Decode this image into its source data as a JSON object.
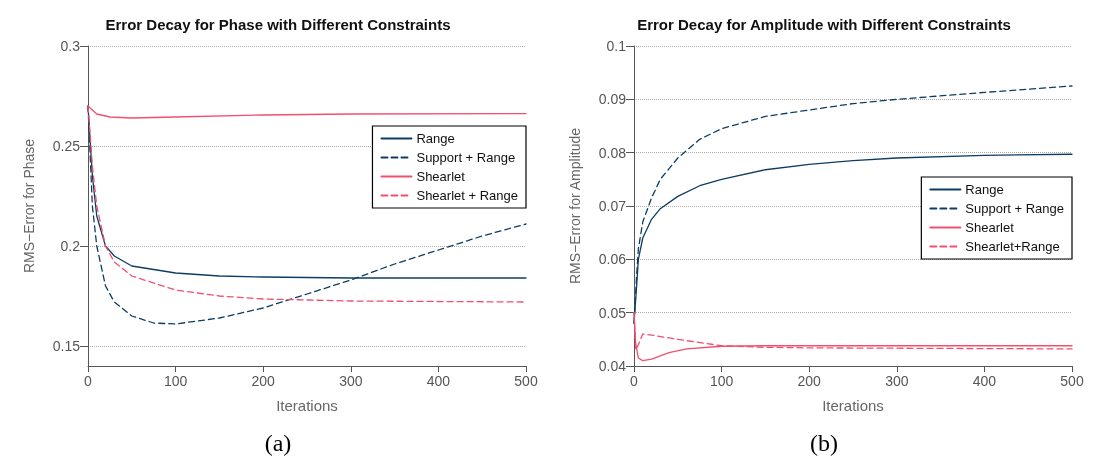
{
  "chart_data": [
    {
      "type": "line",
      "title": "Error Decay for Phase with Different Constraints",
      "xlabel": "Iterations",
      "ylabel": "RMS−Error for Phase",
      "xlim": [
        0,
        500
      ],
      "xticks": [
        0,
        100,
        200,
        300,
        400,
        500
      ],
      "ylim": [
        0.14,
        0.3
      ],
      "yticks": [
        0.15,
        0.2,
        0.25,
        0.3
      ],
      "grid": "y",
      "legend": "top right",
      "marker": "none",
      "annotations": [
        "(a)"
      ],
      "series": [
        {
          "name": "Range",
          "color": "#0d3d63",
          "line_style": "solid",
          "x": [
            0,
            5,
            10,
            20,
            30,
            50,
            100,
            150,
            200,
            300,
            500
          ],
          "values": [
            0.27,
            0.235,
            0.215,
            0.2,
            0.195,
            0.19,
            0.1865,
            0.185,
            0.1845,
            0.184,
            0.184
          ]
        },
        {
          "name": "Support + Range",
          "color": "#0d3d63",
          "line_style": "dashed",
          "x": [
            0,
            5,
            10,
            20,
            30,
            50,
            75,
            100,
            150,
            200,
            250,
            300,
            350,
            400,
            450,
            500
          ],
          "values": [
            0.27,
            0.22,
            0.2,
            0.18,
            0.172,
            0.165,
            0.1615,
            0.161,
            0.164,
            0.169,
            0.176,
            0.183,
            0.191,
            0.198,
            0.205,
            0.211
          ]
        },
        {
          "name": "Shearlet",
          "color": "#f0506e",
          "line_style": "solid",
          "x": [
            0,
            10,
            25,
            50,
            100,
            200,
            300,
            500
          ],
          "values": [
            0.27,
            0.266,
            0.2645,
            0.264,
            0.2645,
            0.2655,
            0.266,
            0.2662
          ]
        },
        {
          "name": "Shearlet + Range",
          "color": "#f0506e",
          "line_style": "dashed",
          "x": [
            0,
            5,
            10,
            20,
            30,
            50,
            100,
            150,
            200,
            300,
            500
          ],
          "values": [
            0.27,
            0.24,
            0.22,
            0.2,
            0.192,
            0.185,
            0.178,
            0.175,
            0.1735,
            0.1725,
            0.172
          ]
        }
      ]
    },
    {
      "type": "line",
      "title": "Error Decay for Amplitude with Different Constraints",
      "xlabel": "Iterations",
      "ylabel": "RMS−Error for Amplitude",
      "xlim": [
        0,
        500
      ],
      "xticks": [
        0,
        100,
        200,
        300,
        400,
        500
      ],
      "ylim": [
        0.04,
        0.1
      ],
      "yticks": [
        0.04,
        0.05,
        0.06,
        0.07,
        0.08,
        0.09,
        0.1
      ],
      "grid": "y",
      "legend": "right",
      "marker": "none",
      "annotations": [
        "(b)"
      ],
      "series": [
        {
          "name": "Range",
          "color": "#0d3d63",
          "line_style": "solid",
          "x": [
            0,
            3,
            5,
            10,
            20,
            30,
            50,
            75,
            100,
            150,
            200,
            250,
            300,
            400,
            500
          ],
          "values": [
            0.048,
            0.055,
            0.06,
            0.064,
            0.0675,
            0.0695,
            0.0718,
            0.0738,
            0.075,
            0.0768,
            0.0778,
            0.0785,
            0.079,
            0.0795,
            0.0797
          ]
        },
        {
          "name": "Support + Range",
          "color": "#0d3d63",
          "line_style": "dashed",
          "x": [
            0,
            3,
            5,
            10,
            20,
            30,
            50,
            75,
            100,
            150,
            200,
            250,
            300,
            400,
            500
          ],
          "values": [
            0.048,
            0.057,
            0.062,
            0.067,
            0.0715,
            0.075,
            0.079,
            0.0825,
            0.0845,
            0.0868,
            0.088,
            0.0892,
            0.09,
            0.0913,
            0.0925
          ]
        },
        {
          "name": "Shearlet",
          "color": "#f0506e",
          "line_style": "solid",
          "x": [
            0,
            2,
            5,
            10,
            20,
            40,
            60,
            100,
            150,
            500
          ],
          "values": [
            0.05,
            0.044,
            0.0415,
            0.041,
            0.0413,
            0.0425,
            0.0432,
            0.0437,
            0.0438,
            0.0438
          ]
        },
        {
          "name": "Shearlet+Range",
          "color": "#f0506e",
          "line_style": "dashed",
          "x": [
            0,
            2,
            5,
            10,
            20,
            50,
            100,
            150,
            200,
            500
          ],
          "values": [
            0.05,
            0.043,
            0.044,
            0.046,
            0.0458,
            0.045,
            0.0438,
            0.0435,
            0.0434,
            0.0432
          ]
        }
      ]
    }
  ]
}
